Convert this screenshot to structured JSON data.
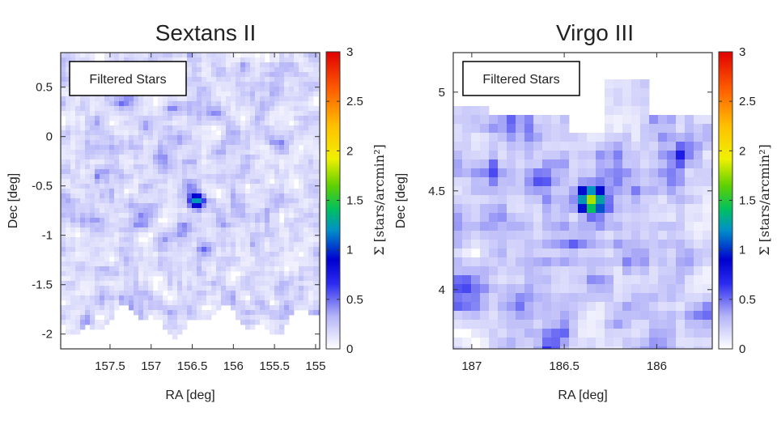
{
  "chart_data": [
    {
      "type": "heatmap",
      "title": "Sextans II",
      "xlabel": "RA [deg]",
      "ylabel": "Dec [deg]",
      "legend": "Filtered Stars",
      "xlim": [
        158.1,
        154.95
      ],
      "ylim": [
        -2.15,
        0.85
      ],
      "x_ticks": [
        "157.5",
        "157",
        "156.5",
        "156",
        "155.5",
        "155"
      ],
      "y_ticks": [
        "0.5",
        "0",
        "-0.5",
        "-1",
        "-1.5",
        "-2"
      ],
      "x_tick_values": [
        157.5,
        157.0,
        156.5,
        156.0,
        155.5,
        155.0
      ],
      "y_tick_values": [
        0.5,
        0.0,
        -0.5,
        -1.0,
        -1.5,
        -2.0
      ],
      "overdensity": {
        "ra": 156.45,
        "dec": -0.65,
        "peak": 1.3
      },
      "background_level": 0.25,
      "colorbar": {
        "label": "Σ [stars/arcmin²]",
        "range": [
          0,
          3
        ],
        "ticks": [
          "0",
          "0.5",
          "1",
          "1.5",
          "2",
          "2.5",
          "3"
        ],
        "tick_values": [
          0,
          0.5,
          1,
          1.5,
          2,
          2.5,
          3
        ]
      }
    },
    {
      "type": "heatmap",
      "title": "Virgo III",
      "xlabel": "RA [deg]",
      "ylabel": "Dec [deg]",
      "legend": "Filtered Stars",
      "xlim": [
        187.1,
        185.7
      ],
      "ylim": [
        3.7,
        5.2
      ],
      "x_ticks": [
        "187",
        "186.5",
        "186"
      ],
      "y_ticks": [
        "5",
        "4.5",
        "4"
      ],
      "x_tick_values": [
        187.0,
        186.5,
        186.0
      ],
      "y_tick_values": [
        5.0,
        4.5,
        4.0
      ],
      "overdensity": {
        "ra": 186.35,
        "dec": 4.45,
        "peak": 1.6
      },
      "background_level": 0.35,
      "colorbar": {
        "label": "Σ [stars/arcmin²]",
        "range": [
          0,
          3
        ],
        "ticks": [
          "0",
          "0.5",
          "1",
          "1.5",
          "2",
          "2.5",
          "3"
        ],
        "tick_values": [
          0,
          0.5,
          1,
          1.5,
          2,
          2.5,
          3
        ]
      }
    }
  ]
}
